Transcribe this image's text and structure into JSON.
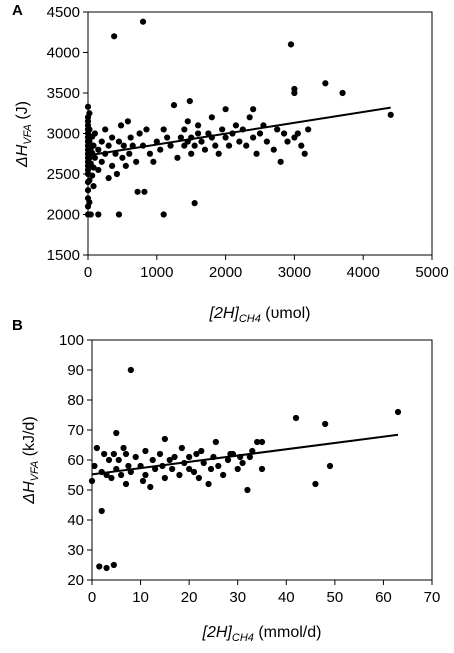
{
  "chart_data": [
    {
      "type": "scatter",
      "panel": "A",
      "xlabel": {
        "main": "[2H]",
        "sub": "CH4",
        "unit": " (υmol)"
      },
      "ylabel": {
        "main": "ΔH",
        "sub": "VFA",
        "unit": " (J)"
      },
      "xlim": [
        0,
        5000
      ],
      "ylim": [
        1500,
        4500
      ],
      "xticks": [
        0,
        1000,
        2000,
        3000,
        4000,
        5000
      ],
      "yticks": [
        1500,
        2000,
        2500,
        3000,
        3500,
        4000,
        4500
      ],
      "grid": false,
      "trendline": {
        "x": [
          0,
          4400
        ],
        "y": [
          2730,
          3320
        ]
      },
      "points": [
        [
          0,
          2000
        ],
        [
          0,
          2100
        ],
        [
          0,
          2200
        ],
        [
          0,
          2300
        ],
        [
          0,
          2400
        ],
        [
          0,
          2500
        ],
        [
          0,
          2550
        ],
        [
          0,
          2600
        ],
        [
          0,
          2650
        ],
        [
          0,
          2700
        ],
        [
          0,
          2750
        ],
        [
          0,
          2800
        ],
        [
          0,
          2850
        ],
        [
          0,
          2900
        ],
        [
          0,
          2950
        ],
        [
          0,
          3000
        ],
        [
          0,
          3050
        ],
        [
          0,
          3100
        ],
        [
          0,
          3150
        ],
        [
          0,
          3200
        ],
        [
          0,
          3330
        ],
        [
          20,
          2150
        ],
        [
          20,
          2420
        ],
        [
          20,
          2700
        ],
        [
          20,
          2900
        ],
        [
          20,
          3050
        ],
        [
          20,
          3250
        ],
        [
          40,
          2000
        ],
        [
          40,
          2630
        ],
        [
          40,
          2820
        ],
        [
          60,
          2480
        ],
        [
          60,
          2760
        ],
        [
          60,
          2960
        ],
        [
          80,
          2350
        ],
        [
          80,
          2580
        ],
        [
          80,
          2850
        ],
        [
          100,
          2700
        ],
        [
          100,
          3000
        ],
        [
          150,
          2000
        ],
        [
          150,
          2550
        ],
        [
          150,
          2800
        ],
        [
          200,
          2650
        ],
        [
          200,
          2900
        ],
        [
          250,
          2750
        ],
        [
          250,
          3050
        ],
        [
          300,
          2450
        ],
        [
          300,
          2850
        ],
        [
          350,
          2600
        ],
        [
          350,
          2950
        ],
        [
          380,
          4200
        ],
        [
          400,
          2750
        ],
        [
          420,
          2500
        ],
        [
          450,
          2000
        ],
        [
          450,
          2900
        ],
        [
          480,
          3100
        ],
        [
          500,
          2700
        ],
        [
          520,
          2850
        ],
        [
          550,
          2600
        ],
        [
          580,
          3150
        ],
        [
          600,
          2750
        ],
        [
          620,
          2950
        ],
        [
          650,
          2850
        ],
        [
          700,
          2650
        ],
        [
          720,
          2280
        ],
        [
          750,
          3000
        ],
        [
          800,
          4380
        ],
        [
          800,
          2850
        ],
        [
          820,
          2280
        ],
        [
          850,
          3050
        ],
        [
          900,
          2750
        ],
        [
          950,
          2650
        ],
        [
          1000,
          2900
        ],
        [
          1050,
          2800
        ],
        [
          1100,
          3050
        ],
        [
          1100,
          2000
        ],
        [
          1150,
          2950
        ],
        [
          1200,
          2850
        ],
        [
          1250,
          3350
        ],
        [
          1300,
          2700
        ],
        [
          1350,
          2950
        ],
        [
          1400,
          2850
        ],
        [
          1400,
          3050
        ],
        [
          1450,
          3150
        ],
        [
          1450,
          2900
        ],
        [
          1480,
          3400
        ],
        [
          1500,
          2950
        ],
        [
          1500,
          2750
        ],
        [
          1550,
          2140
        ],
        [
          1550,
          2850
        ],
        [
          1600,
          3100
        ],
        [
          1600,
          3000
        ],
        [
          1650,
          2900
        ],
        [
          1700,
          2800
        ],
        [
          1750,
          3000
        ],
        [
          1800,
          2950
        ],
        [
          1800,
          3200
        ],
        [
          1850,
          2850
        ],
        [
          1900,
          2750
        ],
        [
          1950,
          3050
        ],
        [
          2000,
          2950
        ],
        [
          2000,
          3300
        ],
        [
          2050,
          2850
        ],
        [
          2100,
          3000
        ],
        [
          2150,
          3100
        ],
        [
          2200,
          2900
        ],
        [
          2250,
          3050
        ],
        [
          2300,
          2850
        ],
        [
          2350,
          3200
        ],
        [
          2400,
          2950
        ],
        [
          2400,
          3300
        ],
        [
          2450,
          2750
        ],
        [
          2500,
          3000
        ],
        [
          2550,
          3100
        ],
        [
          2600,
          2900
        ],
        [
          2700,
          2800
        ],
        [
          2750,
          3050
        ],
        [
          2800,
          2650
        ],
        [
          2850,
          3000
        ],
        [
          2900,
          2900
        ],
        [
          2950,
          4100
        ],
        [
          3000,
          3550
        ],
        [
          3000,
          3500
        ],
        [
          3000,
          2950
        ],
        [
          3050,
          3000
        ],
        [
          3100,
          2850
        ],
        [
          3150,
          2750
        ],
        [
          3200,
          3050
        ],
        [
          3450,
          3620
        ],
        [
          3700,
          3500
        ],
        [
          4400,
          3230
        ]
      ]
    },
    {
      "type": "scatter",
      "panel": "B",
      "xlabel": {
        "main": "[2H]",
        "sub": "CH4",
        "unit": " (mmol/d)"
      },
      "ylabel": {
        "main": "ΔH",
        "sub": "VFA",
        "unit": " (kJ/d)"
      },
      "xlim": [
        0,
        70
      ],
      "ylim": [
        20,
        100
      ],
      "xticks": [
        0,
        10,
        20,
        30,
        40,
        50,
        60,
        70
      ],
      "yticks": [
        20,
        30,
        40,
        50,
        60,
        70,
        80,
        90,
        100
      ],
      "grid": false,
      "trendline": {
        "x": [
          0,
          63
        ],
        "y": [
          55.2,
          68.4
        ]
      },
      "points": [
        [
          0,
          53
        ],
        [
          0.5,
          58
        ],
        [
          1,
          64
        ],
        [
          1.5,
          24.5
        ],
        [
          2,
          43
        ],
        [
          2,
          56
        ],
        [
          2.5,
          62
        ],
        [
          3,
          24
        ],
        [
          3,
          55
        ],
        [
          3.5,
          60
        ],
        [
          4,
          54
        ],
        [
          4.5,
          25
        ],
        [
          4.5,
          62
        ],
        [
          5,
          69
        ],
        [
          5,
          57
        ],
        [
          5.5,
          60
        ],
        [
          6,
          55
        ],
        [
          6.5,
          64
        ],
        [
          7,
          52
        ],
        [
          7,
          62
        ],
        [
          7.5,
          58
        ],
        [
          8,
          90
        ],
        [
          8,
          56
        ],
        [
          9,
          61
        ],
        [
          10,
          58
        ],
        [
          10.5,
          53
        ],
        [
          11,
          55
        ],
        [
          11,
          63
        ],
        [
          12,
          51
        ],
        [
          12.5,
          60
        ],
        [
          13,
          57
        ],
        [
          14,
          62
        ],
        [
          14.5,
          58
        ],
        [
          15,
          54
        ],
        [
          15,
          67
        ],
        [
          16,
          60
        ],
        [
          16.5,
          57
        ],
        [
          17,
          61
        ],
        [
          18,
          55
        ],
        [
          18.5,
          64
        ],
        [
          19,
          59
        ],
        [
          20,
          61
        ],
        [
          20,
          57
        ],
        [
          21,
          56
        ],
        [
          21.5,
          62
        ],
        [
          22,
          54
        ],
        [
          22.5,
          63
        ],
        [
          23,
          59
        ],
        [
          24,
          52
        ],
        [
          24.5,
          57
        ],
        [
          25,
          61
        ],
        [
          25.5,
          66
        ],
        [
          26,
          58
        ],
        [
          27,
          55
        ],
        [
          28,
          60
        ],
        [
          28.5,
          62
        ],
        [
          29,
          62
        ],
        [
          30,
          57
        ],
        [
          30.5,
          61
        ],
        [
          31,
          59
        ],
        [
          32,
          50
        ],
        [
          32.5,
          61
        ],
        [
          33,
          63
        ],
        [
          34,
          66
        ],
        [
          35,
          66
        ],
        [
          35,
          57
        ],
        [
          42,
          74
        ],
        [
          46,
          52
        ],
        [
          48,
          72
        ],
        [
          49,
          58
        ],
        [
          63,
          76
        ]
      ]
    }
  ]
}
